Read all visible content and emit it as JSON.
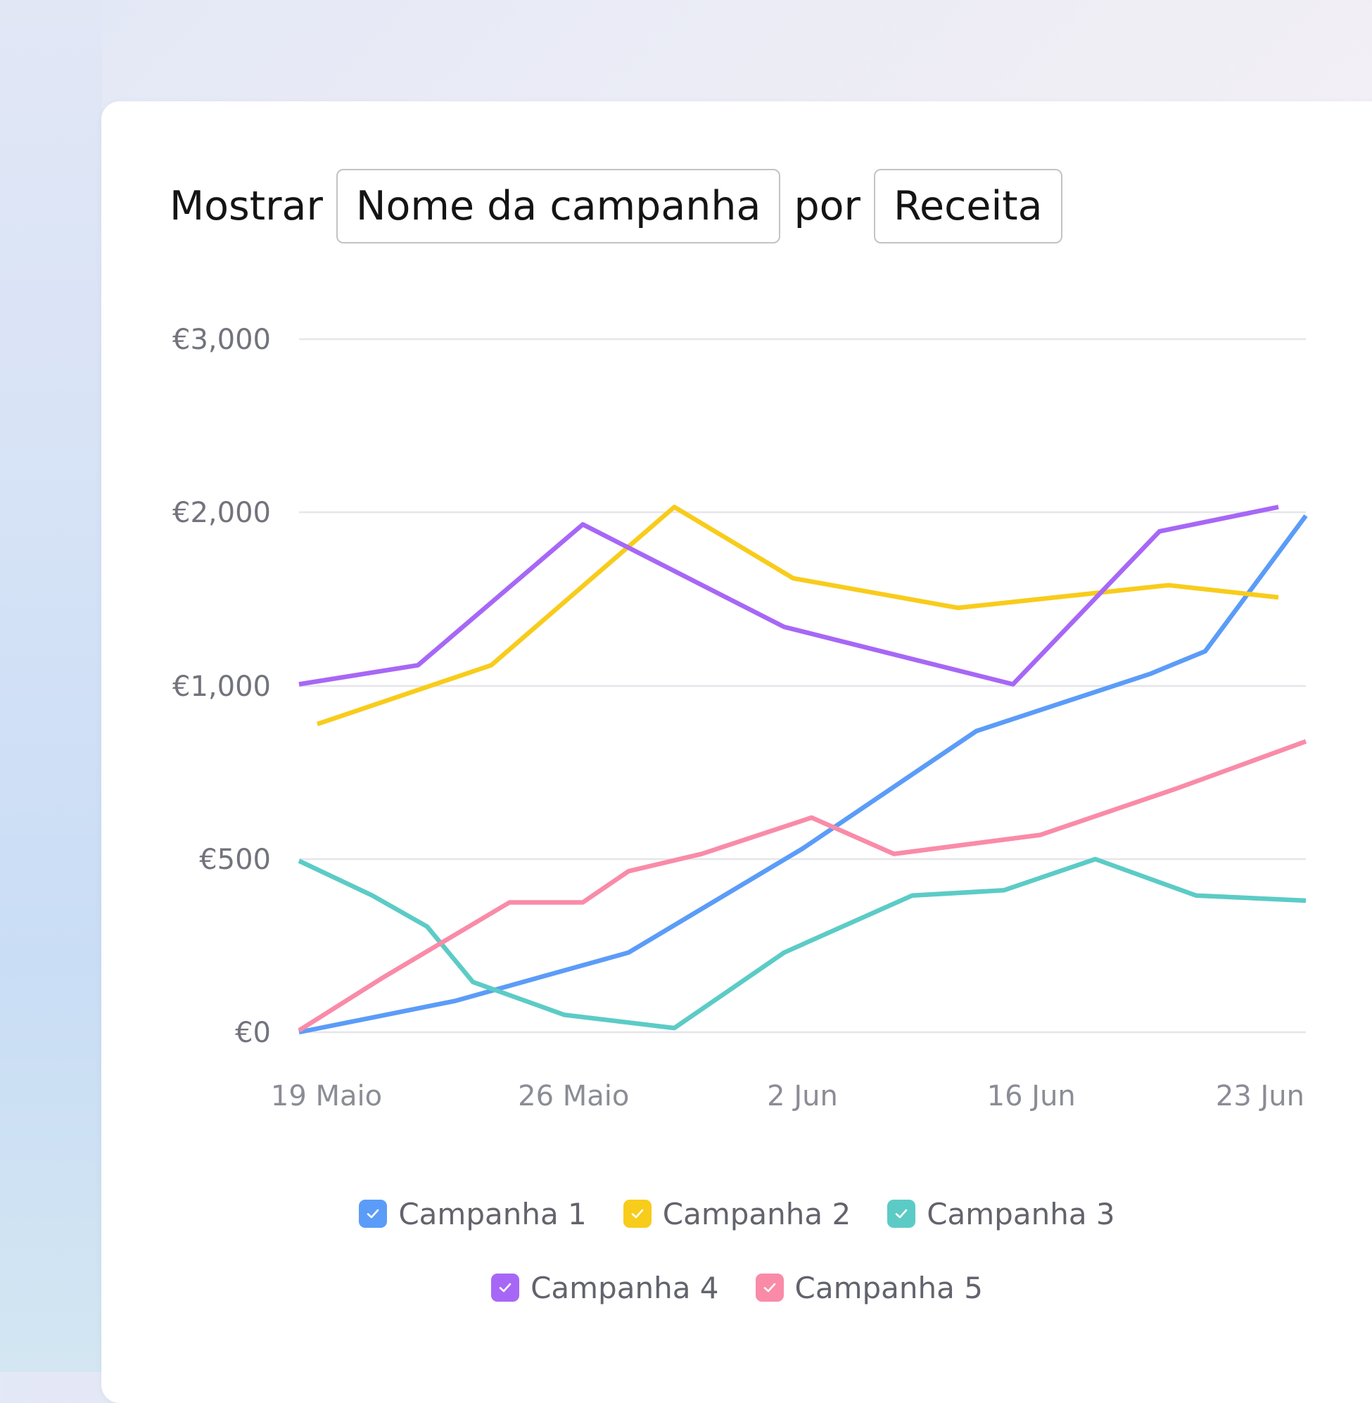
{
  "controls": {
    "show_label": "Mostrar",
    "dimension_value": "Nome da campanha",
    "by_label": "por",
    "metric_value": "Receita"
  },
  "chart_data": {
    "type": "line",
    "title": "",
    "xlabel": "",
    "ylabel": "",
    "y_ticks": [
      {
        "value": 0,
        "label": "€0"
      },
      {
        "value": 500,
        "label": "€500"
      },
      {
        "value": 1000,
        "label": "€1,000"
      },
      {
        "value": 2000,
        "label": "€2,000"
      },
      {
        "value": 3000,
        "label": "€3,000"
      }
    ],
    "x_ticks": [
      "19 Maio",
      "26 Maio",
      "2 Jun",
      "16 Jun",
      "23 Jun"
    ],
    "x_tick_positions": [
      0.3,
      3.0,
      5.5,
      8.0,
      10.5
    ],
    "x_range": [
      0,
      11
    ],
    "grid": true,
    "legend_position": "bottom-center",
    "series": [
      {
        "name": "Campanha 1",
        "color": "#5b9cf8",
        "points": [
          [
            0,
            0
          ],
          [
            1.7,
            90
          ],
          [
            3.6,
            230
          ],
          [
            5.5,
            530
          ],
          [
            7.4,
            870
          ],
          [
            9.3,
            1070
          ],
          [
            9.9,
            1200
          ],
          [
            11,
            1980
          ]
        ]
      },
      {
        "name": "Campanha 2",
        "color": "#f8cc1b",
        "points": [
          [
            0.2,
            890
          ],
          [
            2.1,
            1120
          ],
          [
            4.1,
            2030
          ],
          [
            5.4,
            1620
          ],
          [
            7.2,
            1450
          ],
          [
            9.5,
            1580
          ],
          [
            10.7,
            1510
          ]
        ]
      },
      {
        "name": "Campanha 3",
        "color": "#5ccbc6",
        "points": [
          [
            0,
            495
          ],
          [
            0.8,
            395
          ],
          [
            1.4,
            305
          ],
          [
            1.9,
            145
          ],
          [
            2.9,
            50
          ],
          [
            4.1,
            12
          ],
          [
            5.3,
            230
          ],
          [
            6.7,
            395
          ],
          [
            7.7,
            410
          ],
          [
            8.7,
            500
          ],
          [
            9.8,
            395
          ],
          [
            11,
            380
          ]
        ]
      },
      {
        "name": "Campanha 4",
        "color": "#a767f6",
        "points": [
          [
            0,
            1010
          ],
          [
            1.3,
            1120
          ],
          [
            3.1,
            1930
          ],
          [
            5.3,
            1340
          ],
          [
            7.8,
            1010
          ],
          [
            9.4,
            1890
          ],
          [
            10.7,
            2030
          ]
        ]
      },
      {
        "name": "Campanha 5",
        "color": "#f98ba8",
        "points": [
          [
            0,
            5
          ],
          [
            0.9,
            155
          ],
          [
            2.3,
            375
          ],
          [
            3.1,
            375
          ],
          [
            3.6,
            465
          ],
          [
            4.4,
            515
          ],
          [
            5.6,
            620
          ],
          [
            6.5,
            515
          ],
          [
            8.1,
            570
          ],
          [
            9.6,
            705
          ],
          [
            11,
            840
          ]
        ]
      }
    ]
  }
}
